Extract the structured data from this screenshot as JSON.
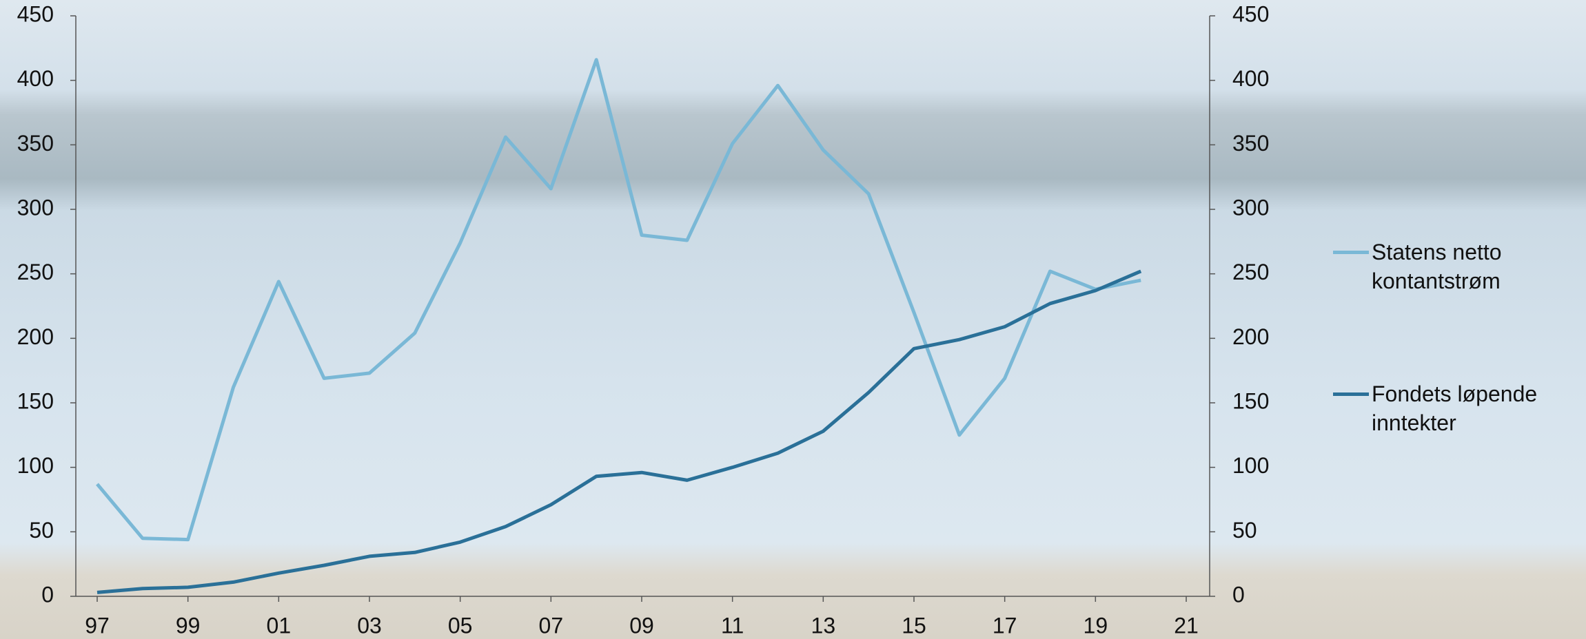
{
  "chart_data": {
    "type": "line",
    "categories": [
      "97",
      null,
      "99",
      null,
      "01",
      null,
      "03",
      null,
      "05",
      null,
      "07",
      null,
      "09",
      null,
      "11",
      null,
      "13",
      null,
      "15",
      null,
      "17",
      null,
      "19",
      null,
      "21"
    ],
    "series": [
      {
        "name": "Statens netto kontantstrøm",
        "color": "#7ab8d6",
        "values": [
          87,
          45,
          44,
          162,
          244,
          169,
          173,
          204,
          274,
          356,
          316,
          416,
          280,
          276,
          351,
          396,
          346,
          312,
          220,
          125,
          169,
          252,
          238,
          245,
          null
        ]
      },
      {
        "name": "Fondets løpende inntekter",
        "color": "#2a7098",
        "values": [
          3,
          6,
          7,
          11,
          18,
          24,
          31,
          34,
          42,
          54,
          71,
          93,
          96,
          90,
          100,
          111,
          128,
          158,
          192,
          199,
          209,
          227,
          237,
          252,
          null
        ]
      }
    ],
    "ylim": [
      0,
      450
    ],
    "yticks": [
      0,
      50,
      100,
      150,
      200,
      250,
      300,
      350,
      400,
      450
    ],
    "y2lim": [
      0,
      450
    ],
    "y2ticks": [
      0,
      50,
      100,
      150,
      200,
      250,
      300,
      350,
      400,
      450
    ]
  }
}
